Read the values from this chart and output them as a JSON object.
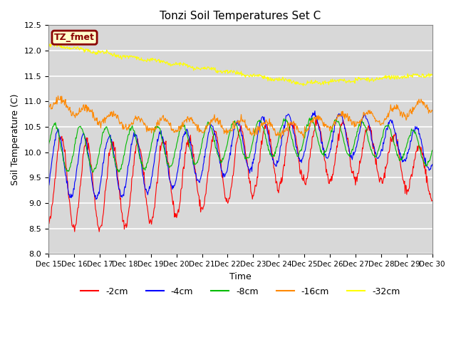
{
  "title": "Tonzi Soil Temperatures Set C",
  "xlabel": "Time",
  "ylabel": "Soil Temperature (C)",
  "ylim": [
    8.0,
    12.5
  ],
  "annotation_text": "TZ_fmet",
  "annotation_bg": "#ffffcc",
  "annotation_border": "#8b0000",
  "xtick_labels": [
    "Dec 15",
    "Dec 16",
    "Dec 17",
    "Dec 18",
    "Dec 19",
    "Dec 20",
    "Dec 21",
    "Dec 22",
    "Dec 23",
    "Dec 24",
    "Dec 25",
    "Dec 26",
    "Dec 27",
    "Dec 28",
    "Dec 29",
    "Dec 30"
  ],
  "colors": {
    "cm2": "#ff0000",
    "cm4": "#0000ff",
    "cm8": "#00bb00",
    "cm16": "#ff8800",
    "cm32": "#ffff00"
  },
  "labels": {
    "cm2": "-2cm",
    "cm4": "-4cm",
    "cm8": "-8cm",
    "cm16": "-16cm",
    "cm32": "-32cm"
  },
  "bg_color": "#d8d8d8",
  "n_per_day": 48,
  "n_days": 15
}
